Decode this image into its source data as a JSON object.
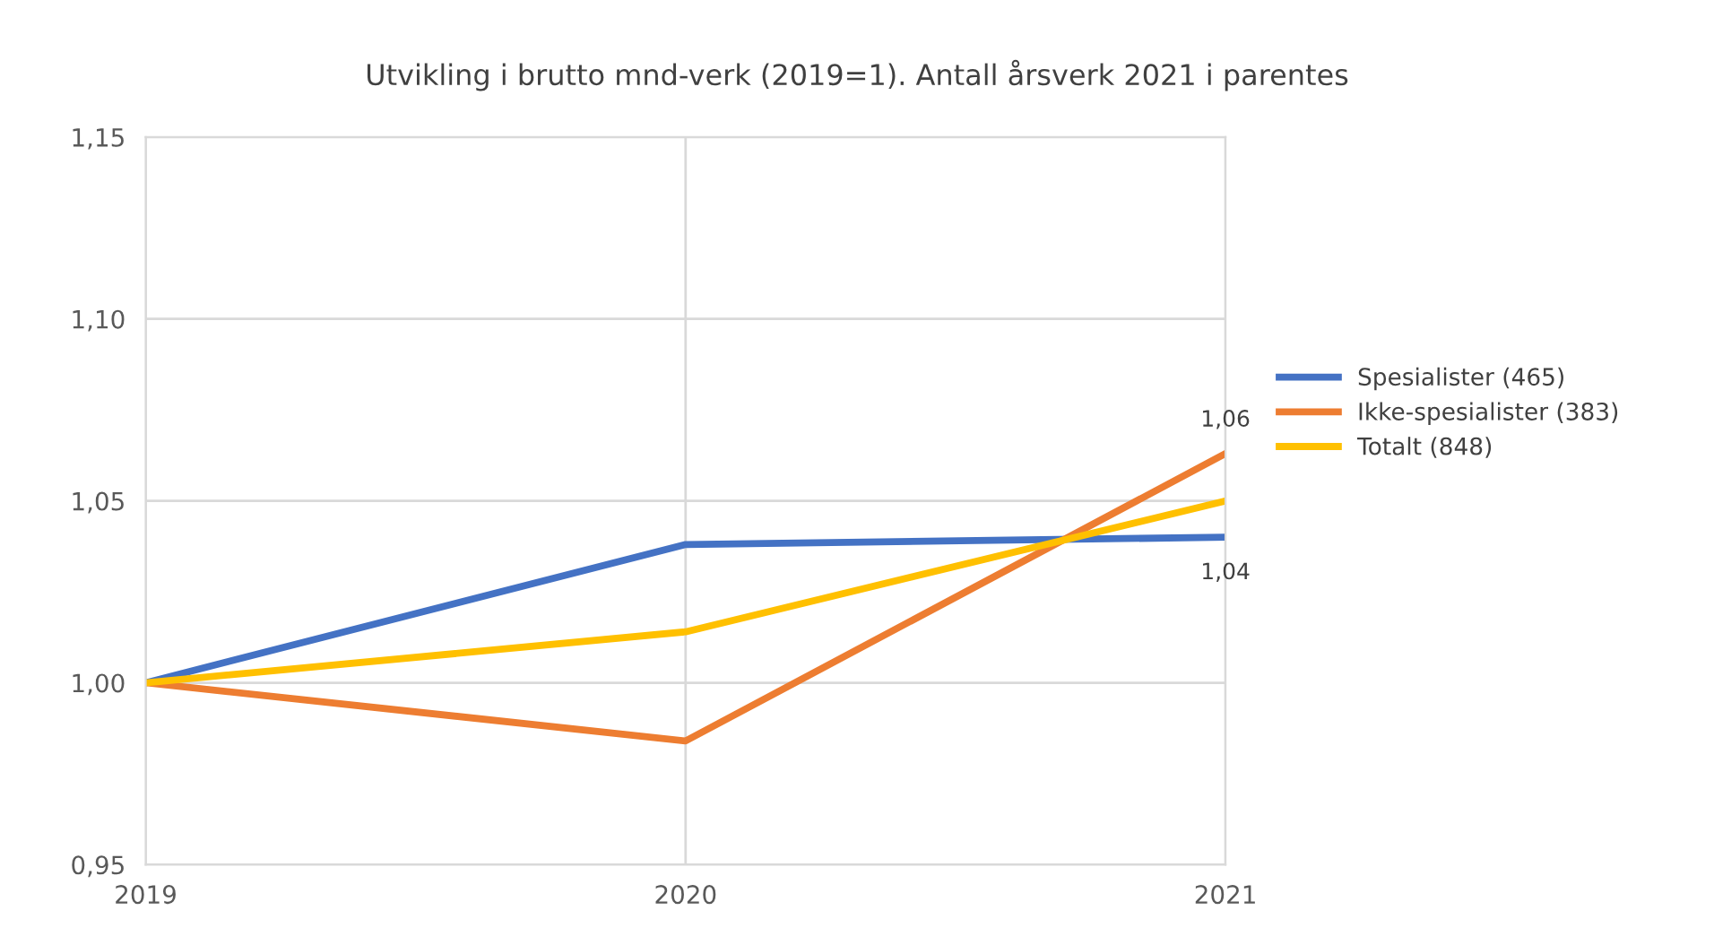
{
  "chart_data": {
    "type": "line",
    "title": "Utvikling i brutto mnd-verk (2019=1). Antall årsverk 2021 i parentes",
    "categories": [
      "2019",
      "2020",
      "2021"
    ],
    "series": [
      {
        "name": "Spesialister (465)",
        "color": "#4472c4",
        "values": [
          1.0,
          1.038,
          1.04
        ],
        "value_labels": [
          null,
          null,
          "1,04"
        ]
      },
      {
        "name": "Ikke-spesialister (383)",
        "color": "#ed7d31",
        "values": [
          1.0,
          0.984,
          1.063
        ],
        "value_labels": [
          null,
          null,
          "1,06"
        ]
      },
      {
        "name": "Totalt (848)",
        "color": "#ffc000",
        "values": [
          1.0,
          1.014,
          1.05
        ]
      }
    ],
    "ylim": [
      0.95,
      1.15
    ],
    "yticks": [
      {
        "value": 0.95,
        "label": "0,95"
      },
      {
        "value": 1.0,
        "label": "1,00"
      },
      {
        "value": 1.05,
        "label": "1,05"
      },
      {
        "value": 1.1,
        "label": "1,10"
      },
      {
        "value": 1.15,
        "label": "1,15"
      }
    ],
    "grid": true,
    "legend": "right",
    "marker": "none",
    "line_style": "solid"
  }
}
